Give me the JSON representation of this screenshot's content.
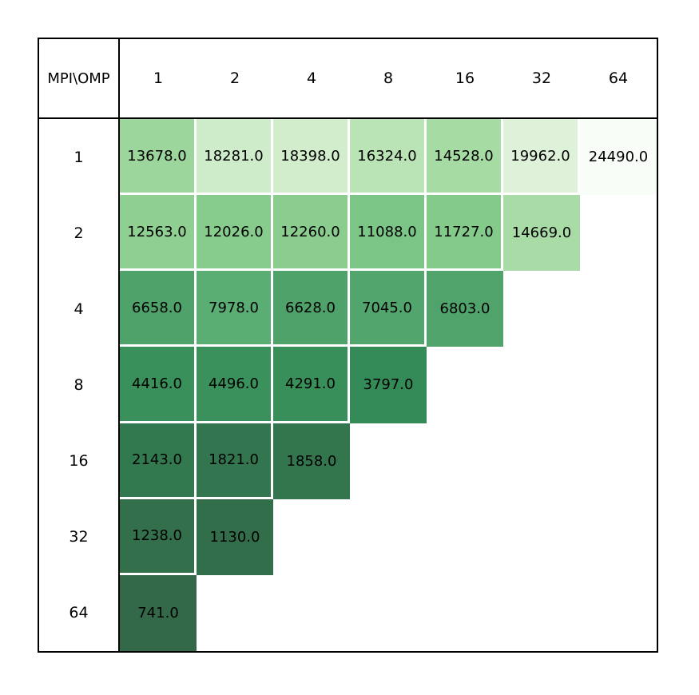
{
  "figure": {
    "background": "#ffffff",
    "border_color": "#000000",
    "text_color": "#000000",
    "grid_gap_color": "#ffffff"
  },
  "chart_data": {
    "type": "heatmap",
    "title": "",
    "corner_label": "MPI\\OMP",
    "xlabel": "OMP",
    "ylabel": "MPI",
    "col_labels": [
      "1",
      "2",
      "4",
      "8",
      "16",
      "32",
      "64"
    ],
    "row_labels": [
      "1",
      "2",
      "4",
      "8",
      "16",
      "32",
      "64"
    ],
    "values": [
      [
        13678.0,
        18281.0,
        18398.0,
        16324.0,
        14528.0,
        19962.0,
        24490.0
      ],
      [
        12563.0,
        12026.0,
        12260.0,
        11088.0,
        11727.0,
        14669.0,
        null
      ],
      [
        6658.0,
        7978.0,
        6628.0,
        7045.0,
        6803.0,
        null,
        null
      ],
      [
        4416.0,
        4496.0,
        4291.0,
        3797.0,
        null,
        null,
        null
      ],
      [
        2143.0,
        1821.0,
        1858.0,
        null,
        null,
        null,
        null
      ],
      [
        1238.0,
        1130.0,
        null,
        null,
        null,
        null,
        null
      ],
      [
        741.0,
        null,
        null,
        null,
        null,
        null,
        null
      ]
    ],
    "value_decimals": 1,
    "legend": "none",
    "colormap": {
      "description": "Greens colormap, reversed (low value = dark green), alpha 0.8 over white",
      "vmin": 741.0,
      "vmax": 24490.0,
      "reverse": true,
      "alpha": 0.8,
      "stops": [
        [
          247,
          252,
          245
        ],
        [
          229,
          245,
          224
        ],
        [
          199,
          233,
          192
        ],
        [
          161,
          217,
          155
        ],
        [
          116,
          196,
          118
        ],
        [
          65,
          171,
          93
        ],
        [
          35,
          139,
          69
        ],
        [
          0,
          109,
          44
        ],
        [
          0,
          68,
          27
        ]
      ]
    }
  }
}
